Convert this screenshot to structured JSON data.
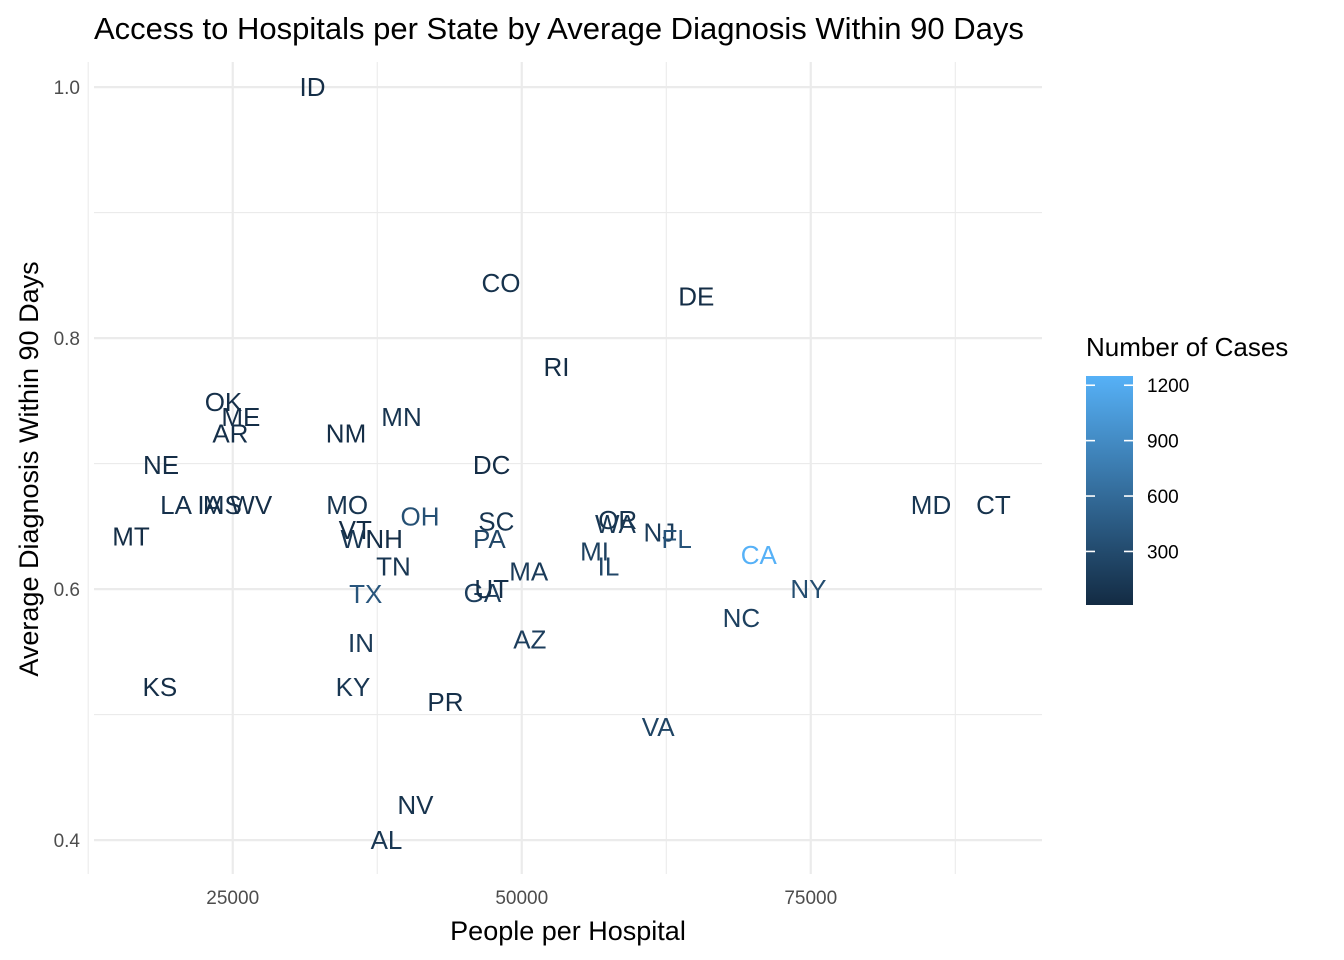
{
  "chart_data": {
    "type": "scatter",
    "title": "Access to Hospitals per State by Average Diagnosis Within 90 Days",
    "xlabel": "People per Hospital",
    "ylabel": "Average Diagnosis Within 90 Days",
    "xlim": [
      13000,
      95000
    ],
    "ylim": [
      0.373,
      1.02
    ],
    "x_ticks": [
      25000,
      50000,
      75000
    ],
    "x_tick_labels": [
      "25000",
      "50000",
      "75000"
    ],
    "x_minor_ticks": [
      12500,
      37500,
      62500,
      87500
    ],
    "y_ticks": [
      0.4,
      0.6,
      0.8,
      1.0
    ],
    "y_tick_labels": [
      "0.4",
      "0.6",
      "0.8",
      "1.0"
    ],
    "y_minor_ticks": [
      0.5,
      0.7,
      0.9
    ],
    "grid": true,
    "marker": "text",
    "legend": {
      "title": "Number of Cases",
      "placement": "right",
      "type": "colorbar",
      "min": 10,
      "max": 1250,
      "ticks": [
        300,
        600,
        900,
        1200
      ],
      "tick_labels": [
        "300",
        "600",
        "900",
        "1200"
      ],
      "low_color": "#132B43",
      "high_color": "#56B1F7"
    },
    "points": [
      {
        "label": "ID",
        "x": 31900,
        "y": 1.0,
        "cases": 40
      },
      {
        "label": "CO",
        "x": 48200,
        "y": 0.844,
        "cases": 80
      },
      {
        "label": "DE",
        "x": 65100,
        "y": 0.833,
        "cases": 30
      },
      {
        "label": "RI",
        "x": 53000,
        "y": 0.777,
        "cases": 30
      },
      {
        "label": "OK",
        "x": 24200,
        "y": 0.749,
        "cases": 60
      },
      {
        "label": "ME",
        "x": 25700,
        "y": 0.737,
        "cases": 40
      },
      {
        "label": "MN",
        "x": 39600,
        "y": 0.737,
        "cases": 90
      },
      {
        "label": "AR",
        "x": 24800,
        "y": 0.724,
        "cases": 50
      },
      {
        "label": "NM",
        "x": 34800,
        "y": 0.724,
        "cases": 40
      },
      {
        "label": "NE",
        "x": 18800,
        "y": 0.699,
        "cases": 40
      },
      {
        "label": "DC",
        "x": 47400,
        "y": 0.699,
        "cases": 30
      },
      {
        "label": "LA",
        "x": 20100,
        "y": 0.667,
        "cases": 70
      },
      {
        "label": "IA",
        "x": 23000,
        "y": 0.667,
        "cases": 50
      },
      {
        "label": "MS",
        "x": 24100,
        "y": 0.667,
        "cases": 50
      },
      {
        "label": "WV",
        "x": 26600,
        "y": 0.667,
        "cases": 40
      },
      {
        "label": "MO",
        "x": 34900,
        "y": 0.667,
        "cases": 100
      },
      {
        "label": "MD",
        "x": 85400,
        "y": 0.667,
        "cases": 110
      },
      {
        "label": "CT",
        "x": 90800,
        "y": 0.667,
        "cases": 80
      },
      {
        "label": "OH",
        "x": 41200,
        "y": 0.658,
        "cases": 350
      },
      {
        "label": "SC",
        "x": 47800,
        "y": 0.654,
        "cases": 90
      },
      {
        "label": "OR",
        "x": 58300,
        "y": 0.655,
        "cases": 80
      },
      {
        "label": "WA",
        "x": 58100,
        "y": 0.652,
        "cases": 130
      },
      {
        "label": "NJ",
        "x": 61900,
        "y": 0.645,
        "cases": 160
      },
      {
        "label": "VT",
        "x": 35600,
        "y": 0.647,
        "cases": 20
      },
      {
        "label": "MT",
        "x": 16200,
        "y": 0.642,
        "cases": 30
      },
      {
        "label": "PA",
        "x": 47200,
        "y": 0.64,
        "cases": 250
      },
      {
        "label": "FL",
        "x": 63400,
        "y": 0.64,
        "cases": 380
      },
      {
        "label": "WI",
        "x": 35700,
        "y": 0.64,
        "cases": 120
      },
      {
        "label": "NH",
        "x": 38100,
        "y": 0.64,
        "cases": 30
      },
      {
        "label": "MI",
        "x": 56300,
        "y": 0.63,
        "cases": 200
      },
      {
        "label": "CA",
        "x": 70500,
        "y": 0.627,
        "cases": 1250
      },
      {
        "label": "IL",
        "x": 57500,
        "y": 0.618,
        "cases": 260
      },
      {
        "label": "TN",
        "x": 38900,
        "y": 0.618,
        "cases": 110
      },
      {
        "label": "MA",
        "x": 50600,
        "y": 0.614,
        "cases": 160
      },
      {
        "label": "TX",
        "x": 36500,
        "y": 0.596,
        "cases": 400
      },
      {
        "label": "GA",
        "x": 46600,
        "y": 0.597,
        "cases": 190
      },
      {
        "label": "UT",
        "x": 47400,
        "y": 0.6,
        "cases": 50
      },
      {
        "label": "NY",
        "x": 74800,
        "y": 0.6,
        "cases": 320
      },
      {
        "label": "NC",
        "x": 69000,
        "y": 0.577,
        "cases": 200
      },
      {
        "label": "AZ",
        "x": 50700,
        "y": 0.56,
        "cases": 180
      },
      {
        "label": "IN",
        "x": 36100,
        "y": 0.557,
        "cases": 150
      },
      {
        "label": "KS",
        "x": 18700,
        "y": 0.522,
        "cases": 40
      },
      {
        "label": "KY",
        "x": 35400,
        "y": 0.522,
        "cases": 110
      },
      {
        "label": "PR",
        "x": 43400,
        "y": 0.51,
        "cases": 50
      },
      {
        "label": "VA",
        "x": 61800,
        "y": 0.49,
        "cases": 240
      },
      {
        "label": "NV",
        "x": 40800,
        "y": 0.428,
        "cases": 80
      },
      {
        "label": "AL",
        "x": 38300,
        "y": 0.4,
        "cases": 120
      }
    ]
  }
}
